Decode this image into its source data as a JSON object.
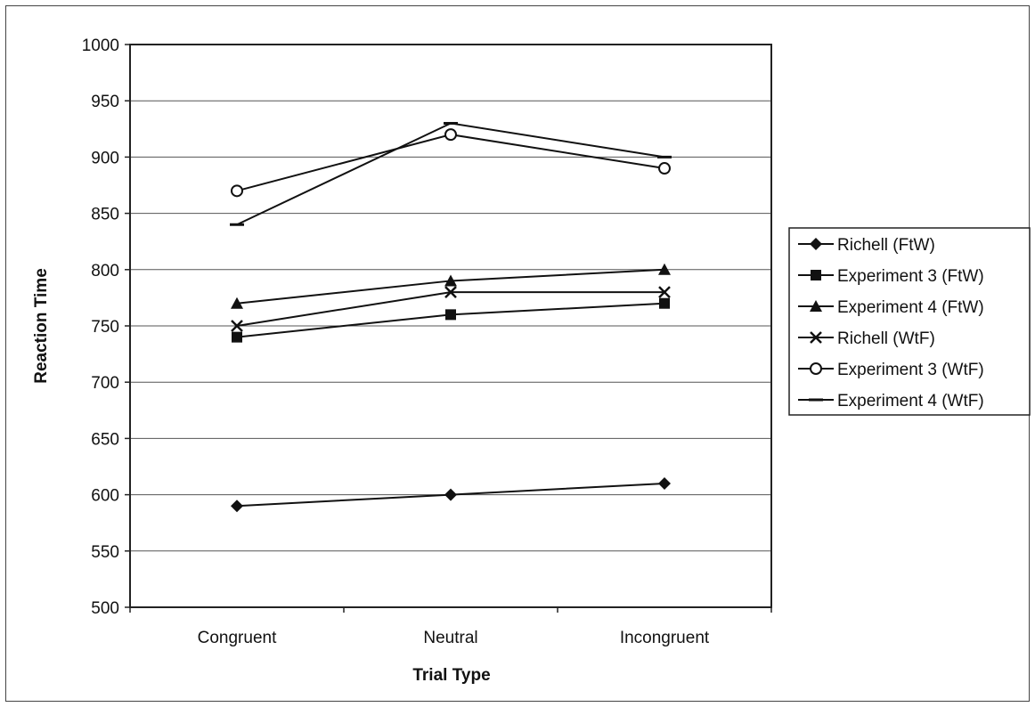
{
  "chart_data": {
    "type": "line",
    "title": "",
    "xlabel": "Trial Type",
    "ylabel": "Reaction Time",
    "categories": [
      "Congruent",
      "Neutral",
      "Incongruent"
    ],
    "ylim": [
      500,
      1000
    ],
    "yticks": [
      500,
      550,
      600,
      650,
      700,
      750,
      800,
      850,
      900,
      950,
      1000
    ],
    "grid": "horizontal",
    "legend_position": "right",
    "series": [
      {
        "name": "Richell (FtW)",
        "marker": "diamond",
        "values": [
          590,
          600,
          610
        ]
      },
      {
        "name": "Experiment 3 (FtW)",
        "marker": "square",
        "values": [
          740,
          760,
          770
        ]
      },
      {
        "name": "Experiment 4 (FtW)",
        "marker": "triangle",
        "values": [
          770,
          790,
          800
        ]
      },
      {
        "name": "Richell (WtF)",
        "marker": "x",
        "values": [
          750,
          780,
          780
        ]
      },
      {
        "name": "Experiment 3 (WtF)",
        "marker": "circle-open",
        "values": [
          870,
          920,
          890
        ]
      },
      {
        "name": "Experiment 4 (WtF)",
        "marker": "dash",
        "values": [
          840,
          930,
          900
        ]
      }
    ]
  }
}
